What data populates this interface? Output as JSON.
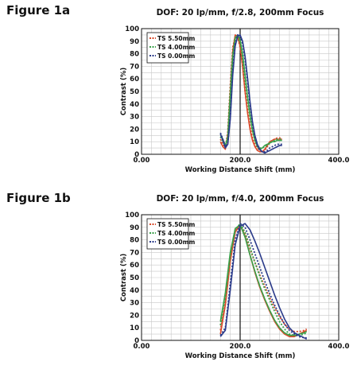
{
  "figures": [
    {
      "label": "Figure 1a"
    },
    {
      "label": "Figure 1b"
    }
  ],
  "chart_data": [
    {
      "type": "line",
      "title": "DOF: 20 lp/mm, f/2.8, 200mm Focus",
      "xlabel": "Working Distance Shift (mm)",
      "ylabel": "Contrast (%)",
      "xlim": [
        0,
        400
      ],
      "ylim": [
        0,
        100
      ],
      "xticks": [
        "0.00",
        "200.0",
        "400.0"
      ],
      "yticks": [
        "0",
        "10",
        "20",
        "30",
        "40",
        "50",
        "60",
        "70",
        "80",
        "90",
        "100"
      ],
      "grid": true,
      "legend_position": "top-left",
      "series": [
        {
          "name": "TS 5.50mm",
          "color": "#d94a2a",
          "dash": "dotted",
          "x": [
            160,
            165,
            170,
            175,
            180,
            185,
            190,
            195,
            200,
            205,
            210,
            215,
            220,
            225,
            230,
            235,
            240,
            245,
            250,
            255,
            260,
            265,
            270,
            275,
            280,
            285
          ],
          "y": [
            12,
            8,
            5,
            18,
            55,
            85,
            94,
            93,
            85,
            70,
            50,
            35,
            22,
            13,
            8,
            5,
            3,
            2,
            3,
            6,
            9,
            11,
            12,
            13,
            13,
            13
          ]
        },
        {
          "name": "TS 5.50mm",
          "color": "#d94a2a",
          "dash": "solid",
          "x": [
            160,
            165,
            170,
            175,
            180,
            185,
            190,
            195,
            200,
            205,
            210,
            215,
            220,
            225,
            230,
            235,
            240,
            245,
            250,
            255,
            260,
            265,
            270,
            275,
            280,
            285
          ],
          "y": [
            10,
            6,
            4,
            16,
            50,
            82,
            95,
            94,
            86,
            70,
            50,
            33,
            20,
            11,
            6,
            3,
            2,
            2,
            4,
            7,
            10,
            11,
            12,
            12,
            12,
            12
          ]
        },
        {
          "name": "TS 4.00mm",
          "color": "#3aa04a",
          "dash": "dotted",
          "x": [
            160,
            165,
            170,
            175,
            180,
            185,
            190,
            195,
            200,
            205,
            210,
            215,
            220,
            225,
            230,
            235,
            240,
            245,
            250,
            255,
            260,
            265,
            270,
            275,
            280,
            285
          ],
          "y": [
            14,
            10,
            6,
            15,
            50,
            80,
            93,
            94,
            89,
            77,
            60,
            44,
            30,
            19,
            12,
            7,
            5,
            5,
            6,
            7,
            9,
            10,
            11,
            12,
            12,
            12
          ]
        },
        {
          "name": "TS 4.00mm",
          "color": "#3aa04a",
          "dash": "solid",
          "x": [
            160,
            165,
            170,
            175,
            180,
            185,
            190,
            195,
            200,
            205,
            210,
            215,
            220,
            225,
            230,
            235,
            240,
            245,
            250,
            255,
            260,
            265,
            270,
            275,
            280,
            285
          ],
          "y": [
            16,
            12,
            7,
            13,
            46,
            78,
            92,
            95,
            91,
            80,
            63,
            46,
            31,
            19,
            11,
            6,
            4,
            5,
            7,
            8,
            9,
            10,
            10,
            11,
            11,
            11
          ]
        },
        {
          "name": "TS 0.00mm",
          "color": "#2a3a8a",
          "dash": "dotted",
          "x": [
            160,
            165,
            170,
            175,
            180,
            185,
            190,
            195,
            200,
            205,
            210,
            215,
            220,
            225,
            230,
            235,
            240,
            245,
            250,
            255,
            260,
            265,
            270,
            275,
            280,
            285
          ],
          "y": [
            17,
            12,
            6,
            9,
            30,
            66,
            88,
            95,
            94,
            88,
            75,
            58,
            40,
            25,
            14,
            7,
            3,
            2,
            2,
            3,
            5,
            6,
            7,
            8,
            8,
            8
          ]
        },
        {
          "name": "TS 0.00mm",
          "color": "#2a3a8a",
          "dash": "solid",
          "x": [
            160,
            165,
            170,
            175,
            180,
            185,
            190,
            195,
            200,
            205,
            210,
            215,
            220,
            225,
            230,
            235,
            240,
            245,
            250,
            255,
            260,
            265,
            270,
            275,
            280,
            285
          ],
          "y": [
            16,
            11,
            5,
            8,
            28,
            63,
            86,
            94,
            95,
            90,
            78,
            61,
            42,
            26,
            15,
            8,
            4,
            2,
            1,
            2,
            3,
            4,
            5,
            6,
            7,
            7
          ]
        }
      ]
    },
    {
      "type": "line",
      "title": "DOF: 20 lp/mm, f/4.0, 200mm Focus",
      "xlabel": "Working Distance Shift (mm)",
      "ylabel": "Contrast (%)",
      "xlim": [
        0,
        400
      ],
      "ylim": [
        0,
        100
      ],
      "xticks": [
        "0.00",
        "200.0",
        "400.0"
      ],
      "yticks": [
        "0",
        "10",
        "20",
        "30",
        "40",
        "50",
        "60",
        "70",
        "80",
        "90",
        "100"
      ],
      "grid": true,
      "legend_position": "top-left",
      "series": [
        {
          "name": "TS 5.50mm",
          "color": "#d94a2a",
          "dash": "dotted",
          "x": [
            160,
            170,
            180,
            190,
            200,
            210,
            220,
            230,
            240,
            250,
            260,
            270,
            280,
            290,
            300,
            310,
            320,
            330,
            335
          ],
          "y": [
            8,
            30,
            65,
            87,
            92,
            85,
            73,
            62,
            52,
            43,
            34,
            26,
            19,
            13,
            9,
            7,
            7,
            8,
            9
          ]
        },
        {
          "name": "TS 5.50mm",
          "color": "#d94a2a",
          "dash": "solid",
          "x": [
            160,
            170,
            180,
            190,
            200,
            210,
            220,
            230,
            240,
            250,
            260,
            270,
            280,
            290,
            300,
            310,
            320,
            330,
            335
          ],
          "y": [
            5,
            28,
            63,
            86,
            92,
            83,
            68,
            54,
            42,
            32,
            23,
            15,
            9,
            5,
            3,
            3,
            5,
            7,
            8
          ]
        },
        {
          "name": "TS 4.00mm",
          "color": "#3aa04a",
          "dash": "dotted",
          "x": [
            160,
            170,
            180,
            190,
            200,
            210,
            220,
            230,
            240,
            250,
            260,
            270,
            280,
            290,
            300,
            310,
            320,
            330,
            335
          ],
          "y": [
            12,
            35,
            68,
            88,
            93,
            86,
            74,
            62,
            51,
            41,
            32,
            23,
            15,
            9,
            5,
            4,
            4,
            5,
            6
          ]
        },
        {
          "name": "TS 4.00mm",
          "color": "#3aa04a",
          "dash": "solid",
          "x": [
            160,
            170,
            180,
            190,
            200,
            210,
            220,
            230,
            240,
            250,
            260,
            270,
            280,
            290,
            300,
            310,
            320,
            330,
            335
          ],
          "y": [
            15,
            38,
            70,
            89,
            92,
            82,
            68,
            55,
            43,
            33,
            24,
            16,
            10,
            6,
            4,
            4,
            5,
            6,
            7
          ]
        },
        {
          "name": "TS 0.00mm",
          "color": "#2a3a8a",
          "dash": "dotted",
          "x": [
            160,
            170,
            180,
            190,
            200,
            210,
            220,
            230,
            240,
            250,
            260,
            270,
            280,
            290,
            300,
            310,
            320,
            330,
            335
          ],
          "y": [
            4,
            10,
            45,
            80,
            93,
            90,
            80,
            69,
            58,
            47,
            37,
            28,
            20,
            13,
            8,
            5,
            3,
            2,
            2
          ]
        },
        {
          "name": "TS 0.00mm",
          "color": "#2a3a8a",
          "dash": "solid",
          "x": [
            160,
            170,
            180,
            190,
            200,
            210,
            220,
            230,
            240,
            250,
            260,
            270,
            280,
            290,
            300,
            310,
            320,
            330,
            335
          ],
          "y": [
            3,
            8,
            40,
            76,
            91,
            93,
            88,
            79,
            69,
            58,
            47,
            36,
            26,
            17,
            10,
            6,
            4,
            2,
            1
          ]
        }
      ]
    }
  ]
}
